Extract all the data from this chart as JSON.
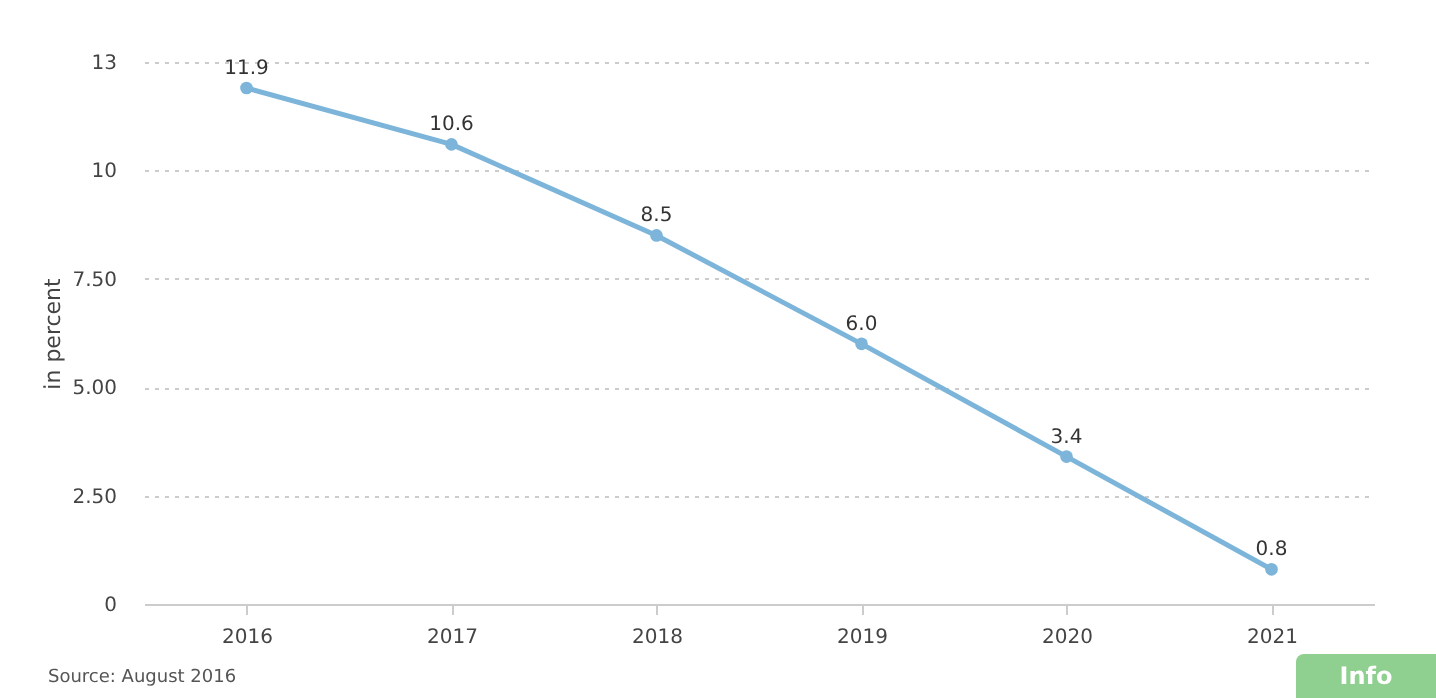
{
  "chart_data": {
    "type": "line",
    "ylabel": "in percent",
    "categories": [
      "2016",
      "2017",
      "2018",
      "2019",
      "2020",
      "2021"
    ],
    "series": [
      {
        "color": "#7cb5d9",
        "values": [
          11.9,
          10.6,
          8.5,
          6.0,
          3.4,
          0.8
        ],
        "value_labels": [
          "11.9",
          "10.6",
          "8.5",
          "6.0",
          "3.4",
          "0.8"
        ]
      }
    ],
    "ylim": [
      0,
      12.5
    ],
    "yticks": [
      0,
      {
        "value": 2.5,
        "label": "2.50"
      },
      {
        "value": 5,
        "label": "5.00"
      },
      {
        "value": 7.5,
        "label": "7.50"
      },
      10,
      {
        "value": 12.5,
        "label": "13"
      }
    ],
    "grid": "y",
    "marker": "circle",
    "line_style": "solid",
    "annotations": [
      "Source: August 2016",
      "Info"
    ]
  }
}
